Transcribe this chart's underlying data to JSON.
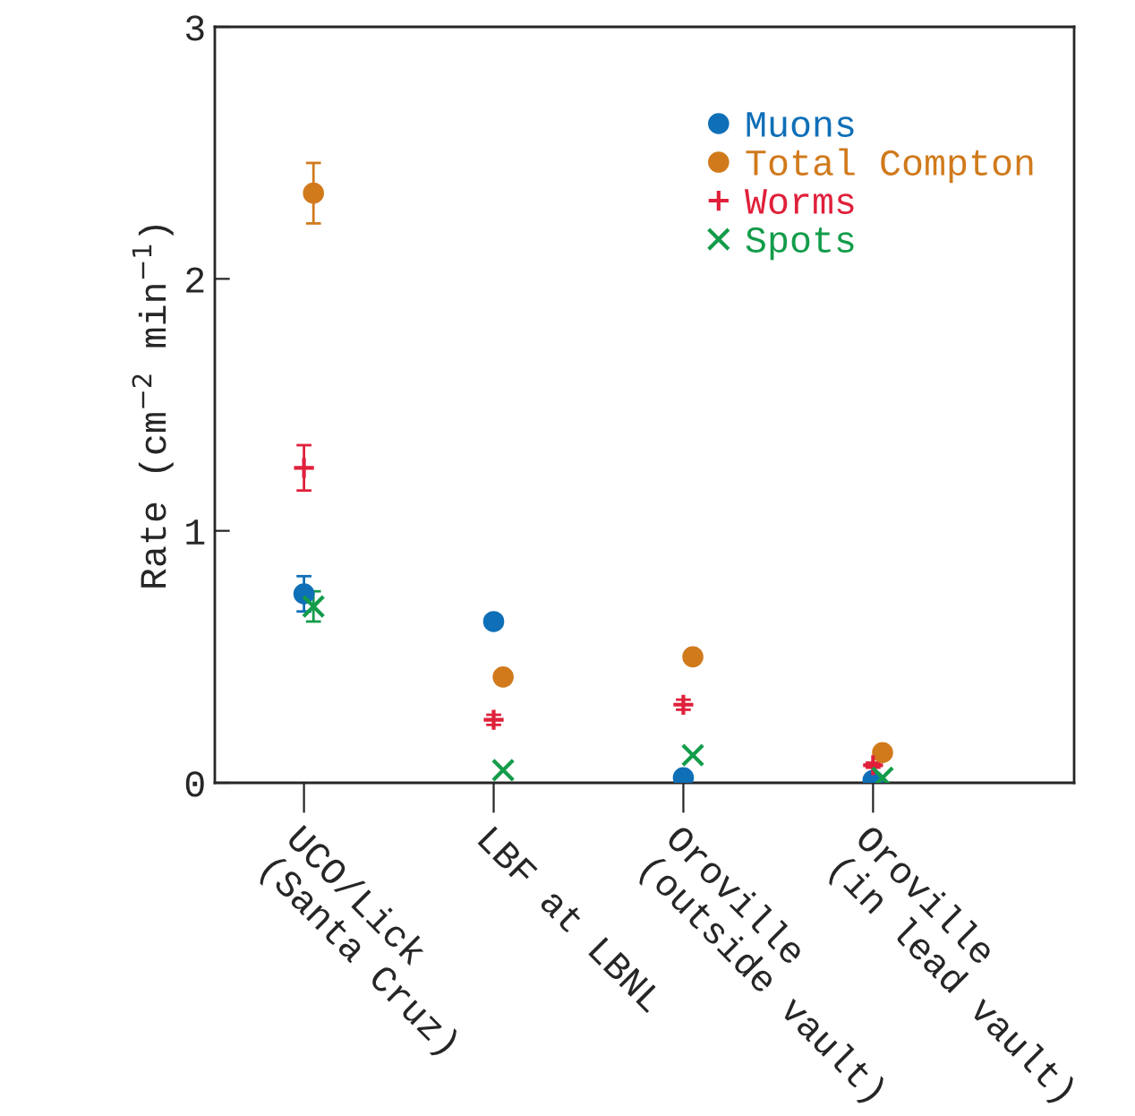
{
  "chart_data": {
    "type": "scatter",
    "ylabel": "Rate (cm$^{−2}$ min$^{−1}$)",
    "categories": [
      "UCO/Lick\n(Santa Cruz)",
      "LBF at LBNL",
      "Oroville\n(outside vault)",
      "Oroville\n(in lead vault)"
    ],
    "series": [
      {
        "name": "Muons",
        "color": "#0f6fb7",
        "marker": "circle",
        "values": [
          0.75,
          0.64,
          0.02,
          0.01
        ],
        "errors": [
          0.07,
          0.02,
          0.01,
          0.01
        ]
      },
      {
        "name": "Total Compton",
        "color": "#d07a1c",
        "marker": "circle",
        "values": [
          2.34,
          0.42,
          0.5,
          0.12
        ],
        "errors": [
          0.12,
          null,
          null,
          0.01
        ]
      },
      {
        "name": "Worms",
        "color": "#e0203a",
        "marker": "plus",
        "values": [
          1.25,
          0.25,
          0.31,
          0.07
        ],
        "errors": [
          0.09,
          0.02,
          0.02,
          0.01
        ]
      },
      {
        "name": "Spots",
        "color": "#139c4a",
        "marker": "cross",
        "values": [
          0.7,
          0.05,
          0.11,
          0.02
        ],
        "errors": [
          0.06,
          null,
          null,
          null
        ]
      }
    ],
    "ylim": [
      0,
      3
    ],
    "yticks": [
      0,
      1,
      2,
      3
    ],
    "grid": false,
    "legend": "top right"
  }
}
